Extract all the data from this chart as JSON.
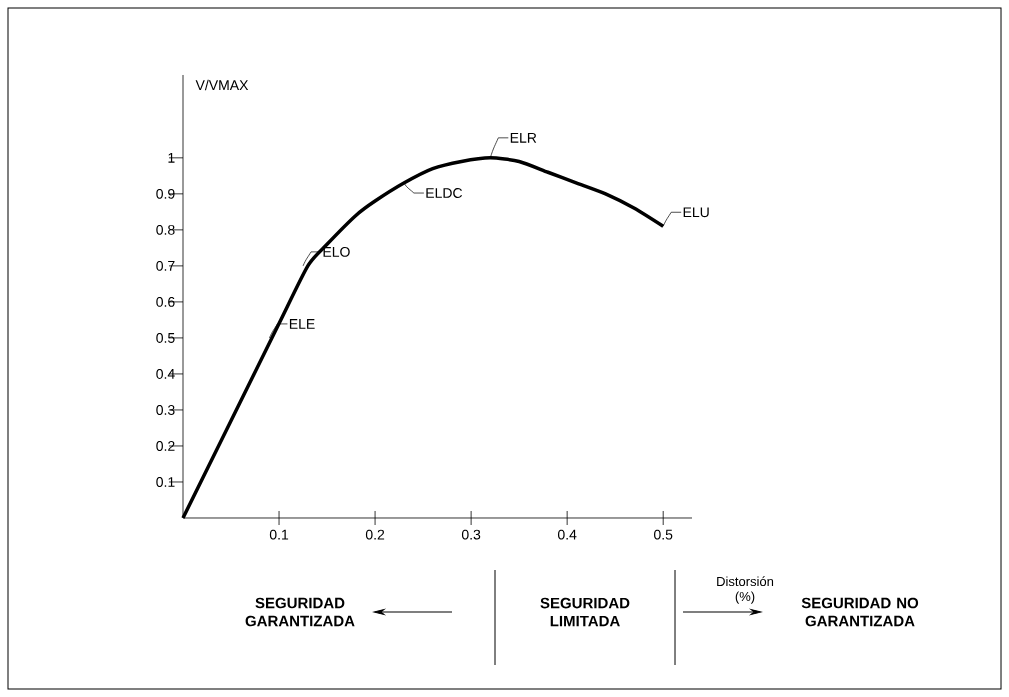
{
  "chart_data": {
    "type": "line",
    "xlabel": "Distorsión (%)",
    "ylabel": "V/VMAX",
    "x": [
      0,
      0.05,
      0.1,
      0.13,
      0.15,
      0.18,
      0.2,
      0.23,
      0.26,
      0.29,
      0.32,
      0.35,
      0.38,
      0.41,
      0.44,
      0.47,
      0.5
    ],
    "series": [
      {
        "color": "#000000",
        "values": [
          0,
          0.27,
          0.54,
          0.7,
          0.76,
          0.84,
          0.88,
          0.93,
          0.97,
          0.99,
          1.0,
          0.99,
          0.96,
          0.93,
          0.9,
          0.86,
          0.81
        ]
      }
    ],
    "xlim": [
      0,
      0.53
    ],
    "ylim": [
      0,
      1.23
    ],
    "xticks": [
      0.1,
      0.2,
      0.3,
      0.4,
      0.5
    ],
    "yticks": [
      0.1,
      0.2,
      0.3,
      0.4,
      0.5,
      0.6,
      0.7,
      0.8,
      0.9,
      1
    ],
    "grid": false,
    "annotations": [
      {
        "text": "ELE",
        "x": 0.09,
        "y": 0.5
      },
      {
        "text": "ELO",
        "x": 0.125,
        "y": 0.7
      },
      {
        "text": "ELDC",
        "x": 0.23,
        "y": 0.93
      },
      {
        "text": "ELR",
        "x": 0.32,
        "y": 1.0
      },
      {
        "text": "ELU",
        "x": 0.5,
        "y": 0.81
      },
      "SEGURIDAD GARANTIZADA",
      "SEGURIDAD LIMITADA",
      "SEGURIDAD NO GARANTIZADA"
    ]
  }
}
